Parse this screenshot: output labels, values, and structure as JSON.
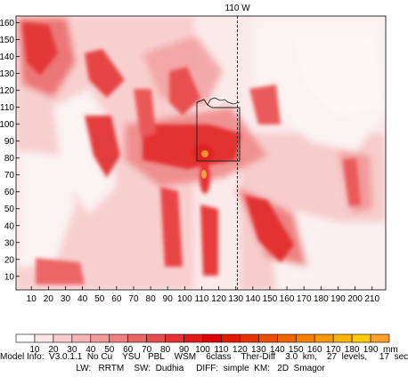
{
  "chart_data": {
    "type": "heatmap",
    "meridian_label": "110 W",
    "x_ticks": [
      10,
      20,
      30,
      40,
      50,
      60,
      70,
      80,
      90,
      100,
      110,
      120,
      130,
      140,
      150,
      160,
      170,
      180,
      190,
      200,
      210
    ],
    "y_ticks": [
      10,
      20,
      30,
      40,
      50,
      60,
      70,
      80,
      90,
      100,
      110,
      120,
      130,
      140,
      150,
      160
    ],
    "xlim": [
      1,
      218
    ],
    "ylim": [
      2,
      164
    ],
    "meridian_x": 131,
    "colorbar": {
      "unit": "mm",
      "levels": [
        10,
        20,
        30,
        40,
        50,
        60,
        70,
        80,
        90,
        100,
        110,
        120,
        130,
        140,
        150,
        160,
        170,
        180,
        190
      ],
      "colors": [
        "#ffffff",
        "#fbe6e6",
        "#f8cccc",
        "#f5b3b3",
        "#f29999",
        "#ef8080",
        "#ec6666",
        "#e84d4d",
        "#e53333",
        "#e21a1a",
        "#e00000",
        "#e41a00",
        "#e83300",
        "#ec4d00",
        "#ef6600",
        "#f38000",
        "#f69900",
        "#fab300",
        "#fdcc00",
        "#ff9f2e"
      ]
    },
    "accent_color": "#e2323c"
  },
  "footer": {
    "model_info": "Model Info:  V3.0.1.1  No Cu    YSU   PBL    WSM    6class    Ther-Diff    3.0  km,    27  levels,     17  sec",
    "physics": "LW:   RRTM    SW:  Dudhia     DIFF:  simple  KM:   2D  Smagor"
  }
}
